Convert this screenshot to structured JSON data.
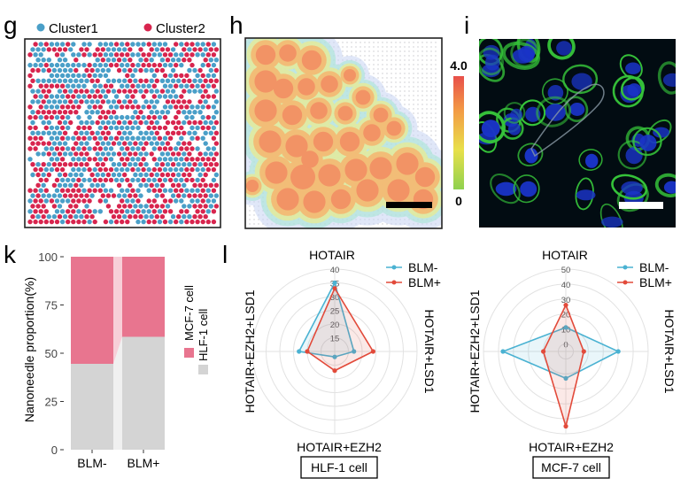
{
  "panels": {
    "g": {
      "letter": "g",
      "legend": [
        "Cluster1",
        "Cluster2"
      ]
    },
    "h": {
      "letter": "h",
      "colorbar": {
        "max_label": "4.0",
        "min_label": "0"
      }
    },
    "i": {
      "letter": "i"
    },
    "k": {
      "letter": "k"
    },
    "l": {
      "letter": "l"
    }
  },
  "colors": {
    "cluster1": "#4a9fc8",
    "cluster2": "#d8254e",
    "mcf7": "#e8758f",
    "hlf1": "#d4d4d4",
    "blm_minus": "#4ab2d2",
    "blm_plus": "#e24a3a",
    "micro_bg": "#020c12",
    "micro_membrane": "#36c43a",
    "micro_nuclei": "#1a34c8"
  },
  "chart_data": [
    {
      "id": "k",
      "type": "bar",
      "stacked": true,
      "categories": [
        "BLM-",
        "BLM+"
      ],
      "series": [
        {
          "name": "HLF-1 cell",
          "values": [
            44.5,
            58.5
          ]
        },
        {
          "name": "MCF-7 cell",
          "values": [
            55.5,
            41.5
          ]
        }
      ],
      "ylabel": "Nanoneedle proportion(%)",
      "ylim": [
        0,
        100
      ],
      "yticks": [
        "0",
        "25",
        "50",
        "75",
        "100"
      ],
      "legend_position": "right"
    },
    {
      "id": "l-left",
      "type": "radar",
      "axes": [
        "HOTAIR",
        "HOTAIR+LSD1",
        "HOTAIR+EZH2",
        "HOTAIR+EZH2+LSD1"
      ],
      "rlim": [
        10,
        40
      ],
      "rticks": [
        "15",
        "20",
        "25",
        "30",
        "35",
        "40"
      ],
      "series": [
        {
          "name": "BLM-",
          "values": [
            35,
            17,
            12,
            23
          ]
        },
        {
          "name": "BLM+",
          "values": [
            33,
            24,
            17,
            20
          ]
        }
      ],
      "caption": "HLF-1 cell"
    },
    {
      "id": "l-right",
      "type": "radar",
      "axes": [
        "HOTAIR",
        "HOTAIR+LSD1",
        "HOTAIR+EZH2",
        "HOTAIR+EZH2+LSD1"
      ],
      "rlim": [
        -5,
        50
      ],
      "rticks": [
        "0",
        "10",
        "20",
        "30",
        "40",
        "50"
      ],
      "series": [
        {
          "name": "BLM-",
          "values": [
            11,
            30,
            13,
            37
          ]
        },
        {
          "name": "BLM+",
          "values": [
            26,
            7,
            45,
            10
          ]
        }
      ],
      "caption": "MCF-7 cell"
    }
  ]
}
